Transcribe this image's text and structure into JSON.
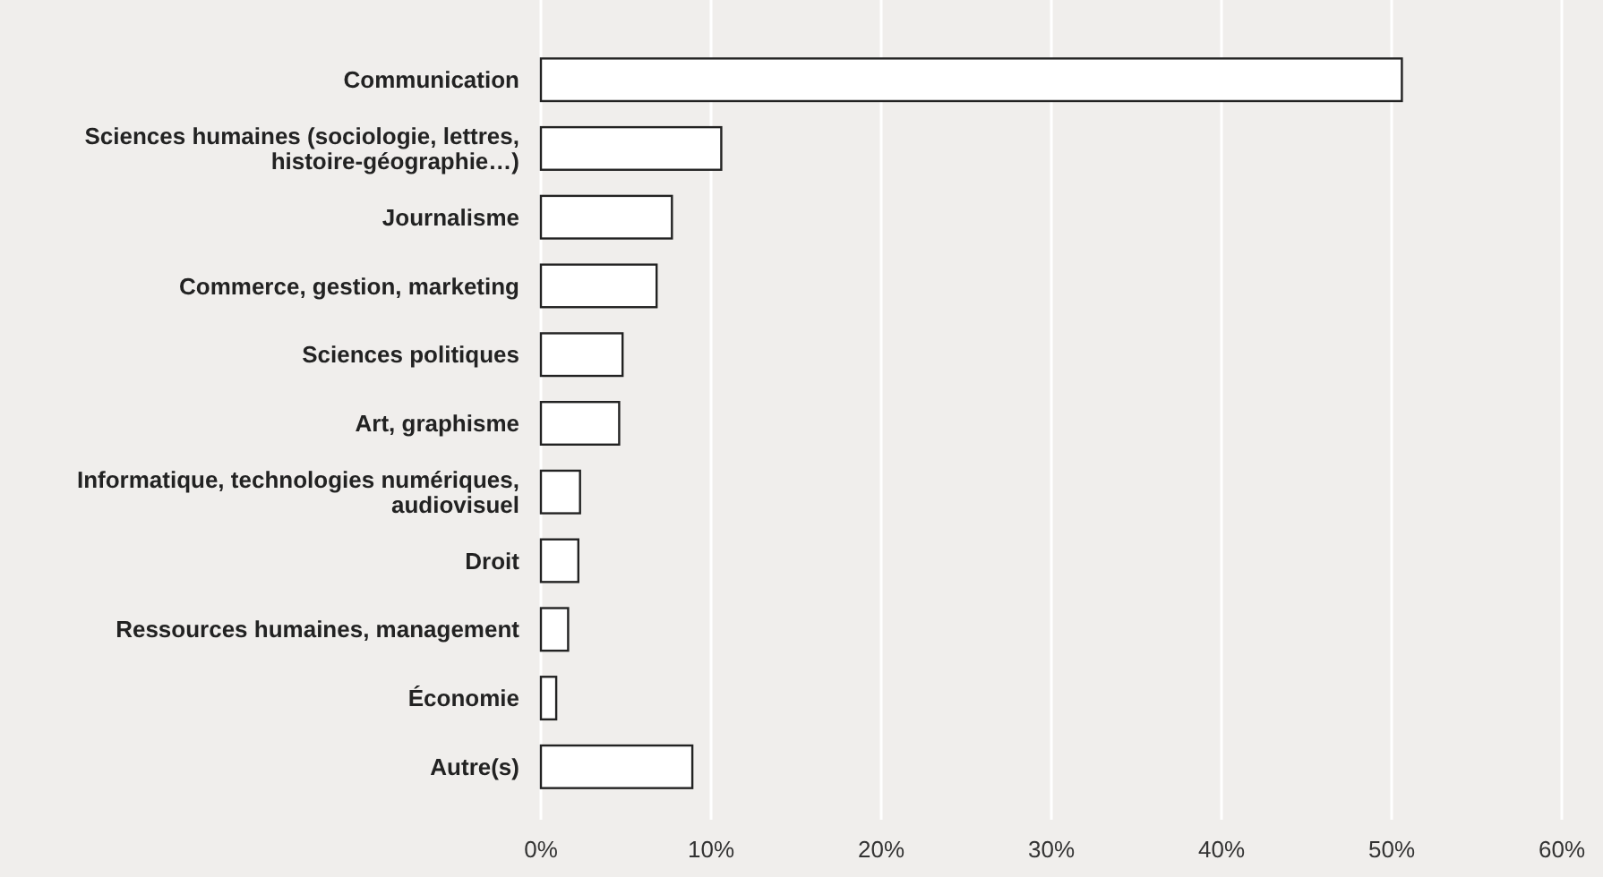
{
  "chart_data": {
    "type": "bar",
    "orientation": "horizontal",
    "categories": [
      "Communication",
      "Sciences humaines (sociologie, lettres, histoire-géographie…)",
      "Journalisme",
      "Commerce, gestion, marketing",
      "Sciences politiques",
      "Art, graphisme",
      "Informatique, technologies numériques, audiovisuel",
      "Droit",
      "Ressources humaines, management",
      "Économie",
      "Autre(s)"
    ],
    "values": [
      50.6,
      10.6,
      7.7,
      6.8,
      4.8,
      4.6,
      2.3,
      2.2,
      1.6,
      0.9,
      8.9
    ],
    "color": "#ffffff",
    "xlim": [
      0,
      60
    ],
    "xticks": [
      {
        "value": 0,
        "label": "0%"
      },
      {
        "value": 10,
        "label": "10%"
      },
      {
        "value": 20,
        "label": "20%"
      },
      {
        "value": 30,
        "label": "30%"
      },
      {
        "value": 40,
        "label": "40%"
      },
      {
        "value": 50,
        "label": "50%"
      },
      {
        "value": 60,
        "label": "60%"
      }
    ],
    "grid": "x"
  }
}
